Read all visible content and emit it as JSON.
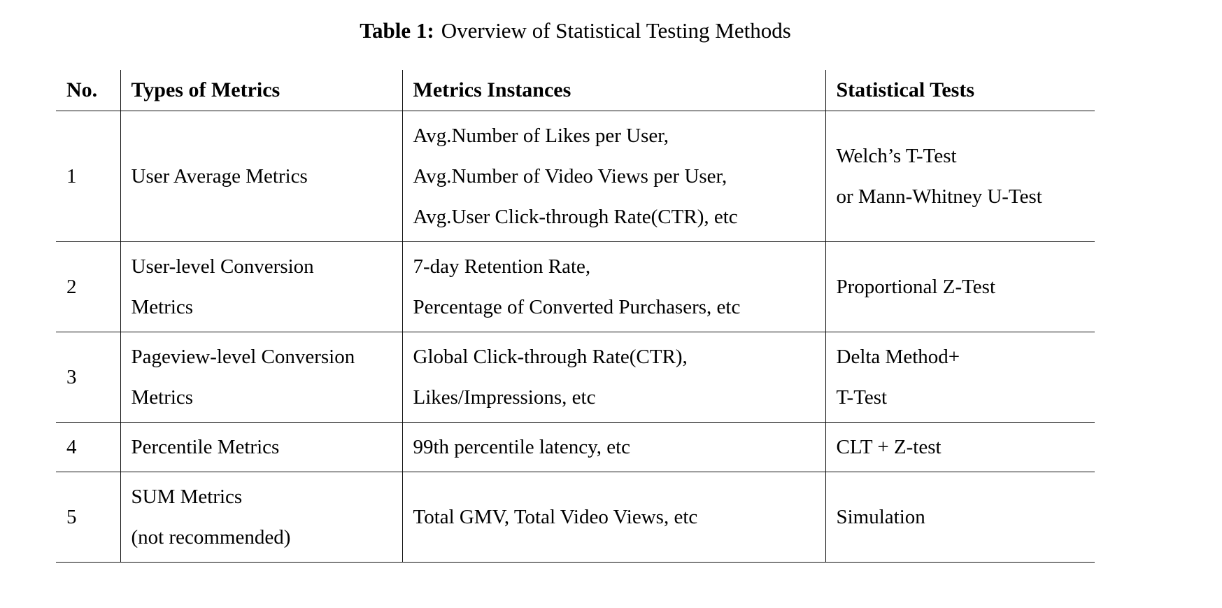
{
  "title": {
    "label": "Table 1:",
    "text": "Overview of Statistical Testing Methods"
  },
  "table": {
    "headers": {
      "no": "No.",
      "types": "Types of Metrics",
      "instances": "Metrics Instances",
      "tests": "Statistical Tests"
    },
    "rows": [
      {
        "no": "1",
        "types": [
          "User Average Metrics"
        ],
        "instances": [
          "Avg.Number of Likes per User,",
          "Avg.Number of Video Views per User,",
          "Avg.User Click-through Rate(CTR), etc"
        ],
        "tests": [
          "Welch’s T-Test",
          "or Mann-Whitney U-Test"
        ]
      },
      {
        "no": "2",
        "types": [
          "User-level Conversion",
          "Metrics"
        ],
        "instances": [
          "7-day Retention Rate,",
          "Percentage of Converted Purchasers, etc"
        ],
        "tests": [
          "Proportional Z-Test"
        ]
      },
      {
        "no": "3",
        "types": [
          "Pageview-level Conversion",
          "Metrics"
        ],
        "instances": [
          "Global Click-through Rate(CTR),",
          "Likes/Impressions, etc"
        ],
        "tests": [
          "Delta Method+",
          "T-Test"
        ]
      },
      {
        "no": "4",
        "types": [
          "Percentile Metrics"
        ],
        "instances": [
          "99th percentile latency, etc"
        ],
        "tests": [
          "CLT + Z-test"
        ]
      },
      {
        "no": "5",
        "types": [
          "SUM Metrics",
          "(not recommended)"
        ],
        "instances": [
          "Total GMV, Total Video Views, etc"
        ],
        "tests": [
          "Simulation"
        ]
      }
    ]
  }
}
